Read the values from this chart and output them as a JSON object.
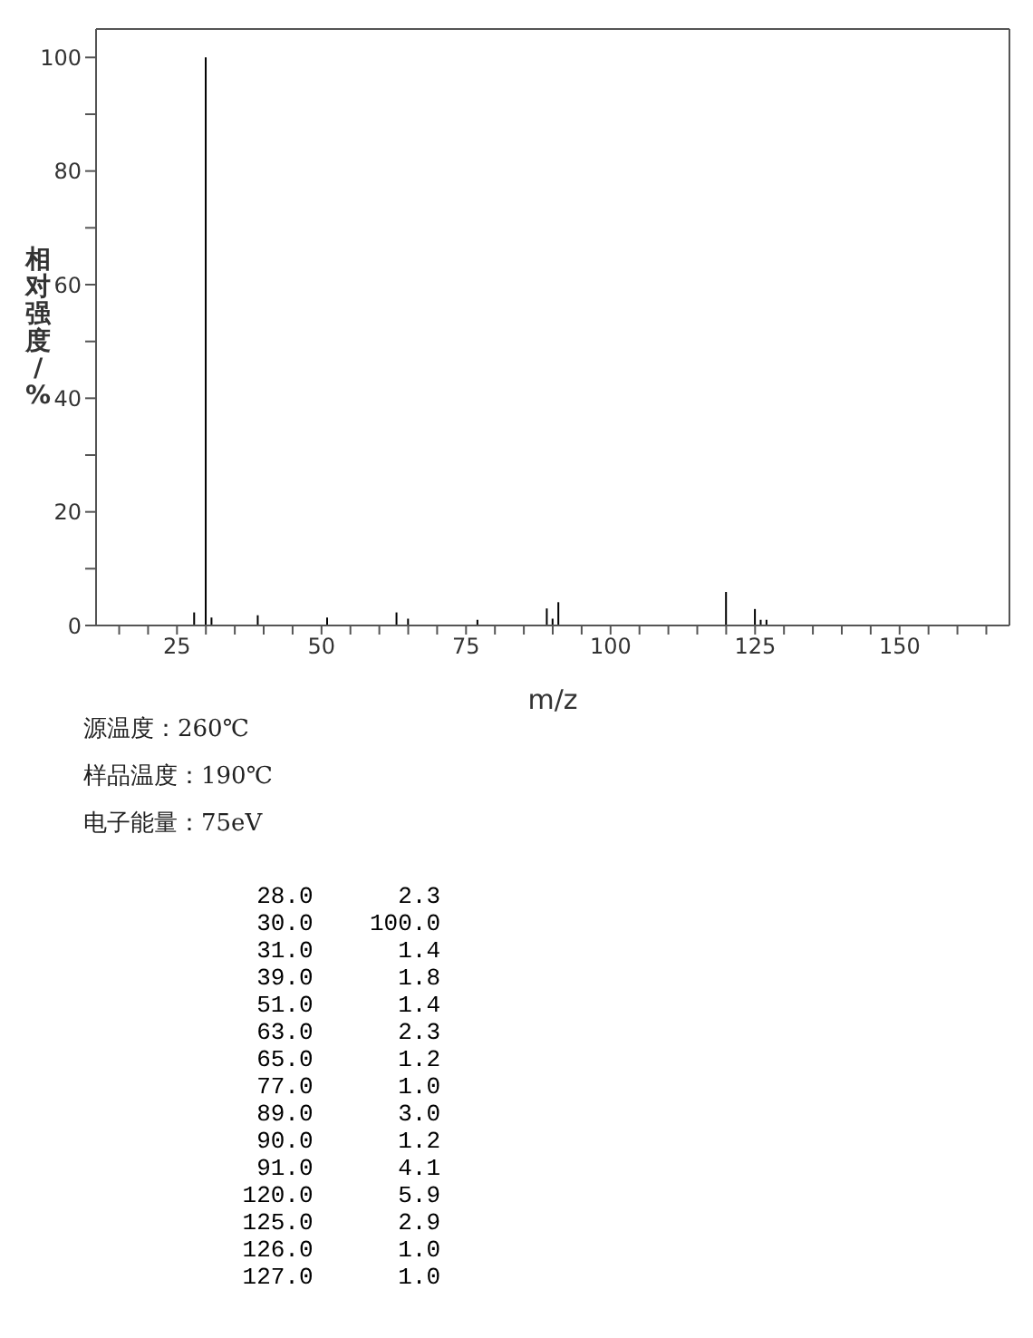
{
  "chart_data": {
    "type": "bar",
    "xlabel": "m/z",
    "ylabel": "相对强度/%",
    "x": [
      28,
      30,
      31,
      39,
      51,
      63,
      65,
      77,
      89,
      90,
      91,
      120,
      125,
      126,
      127
    ],
    "values": [
      2.3,
      100,
      1.4,
      1.8,
      1.4,
      2.3,
      1.2,
      1.0,
      3.0,
      1.2,
      4.1,
      5.9,
      2.9,
      1.0,
      1.0
    ],
    "color": "#000000",
    "xlim": [
      11,
      169
    ],
    "xticks": [
      {
        "value": 15,
        "label": null
      },
      {
        "value": 20,
        "label": null
      },
      25,
      {
        "value": 30,
        "label": null
      },
      {
        "value": 35,
        "label": null
      },
      {
        "value": 40,
        "label": null
      },
      {
        "value": 45,
        "label": null
      },
      50,
      {
        "value": 55,
        "label": null
      },
      {
        "value": 60,
        "label": null
      },
      {
        "value": 65,
        "label": null
      },
      {
        "value": 70,
        "label": null
      },
      75,
      {
        "value": 80,
        "label": null
      },
      {
        "value": 85,
        "label": null
      },
      {
        "value": 90,
        "label": null
      },
      {
        "value": 95,
        "label": null
      },
      100,
      {
        "value": 105,
        "label": null
      },
      {
        "value": 110,
        "label": null
      },
      {
        "value": 115,
        "label": null
      },
      {
        "value": 120,
        "label": null
      },
      125,
      {
        "value": 130,
        "label": null
      },
      {
        "value": 135,
        "label": null
      },
      {
        "value": 140,
        "label": null
      },
      {
        "value": 145,
        "label": null
      },
      150,
      {
        "value": 155,
        "label": null
      },
      {
        "value": 160,
        "label": null
      },
      {
        "value": 165,
        "label": null
      }
    ],
    "ylim": [
      0,
      105
    ],
    "yticks": [
      0,
      {
        "value": 10,
        "label": null
      },
      20,
      {
        "value": 30,
        "label": null
      },
      40,
      {
        "value": 50,
        "label": null
      },
      60,
      {
        "value": 70,
        "label": null
      },
      80,
      {
        "value": 90,
        "label": null
      },
      100
    ],
    "grid": false,
    "legend": false,
    "annotations": [
      "源温度：260℃",
      "样品温度：190℃",
      "电子能量：75eV",
      "28.0      2.3",
      "30.0    100.0",
      "31.0      1.4",
      "39.0      1.8",
      "51.0      1.4",
      "63.0      2.3",
      "65.0      1.2",
      "77.0      1.0",
      "89.0      3.0",
      "90.0      1.2",
      "91.0      4.1",
      "120.0      5.9",
      "125.0      2.9",
      "126.0      1.0",
      "127.0      1.0"
    ]
  }
}
